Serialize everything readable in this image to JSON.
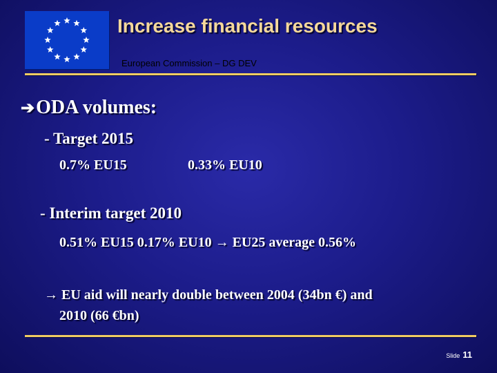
{
  "header": {
    "title": "Increase financial resources",
    "subtitle": "European Commission – DG DEV"
  },
  "flag": {
    "name": "eu-flag",
    "background_color": "#0a3cc8",
    "star_color": "#ffffff"
  },
  "content": {
    "heading_arrow_icon": "right-arrow-icon",
    "heading": "ODA volumes:",
    "target_2015": {
      "label": "- Target 2015",
      "value_eu15": "0.7% EU15",
      "value_eu10": "0.33% EU10"
    },
    "interim_2010": {
      "label": "- Interim target 2010",
      "values": "0.51% EU15 0.17% EU10 → EU25 average 0.56%"
    },
    "conclusion": {
      "line1": "→ EU aid will nearly double between  2004 (34bn €) and",
      "line2": "2010 (66 €bn)"
    }
  },
  "footer": {
    "slide_label": "Slide",
    "slide_number": "11"
  },
  "colors": {
    "title": "#f5d89b",
    "rule": "#f0cc62",
    "background": "#1c1c8a",
    "text": "#ffffff"
  }
}
